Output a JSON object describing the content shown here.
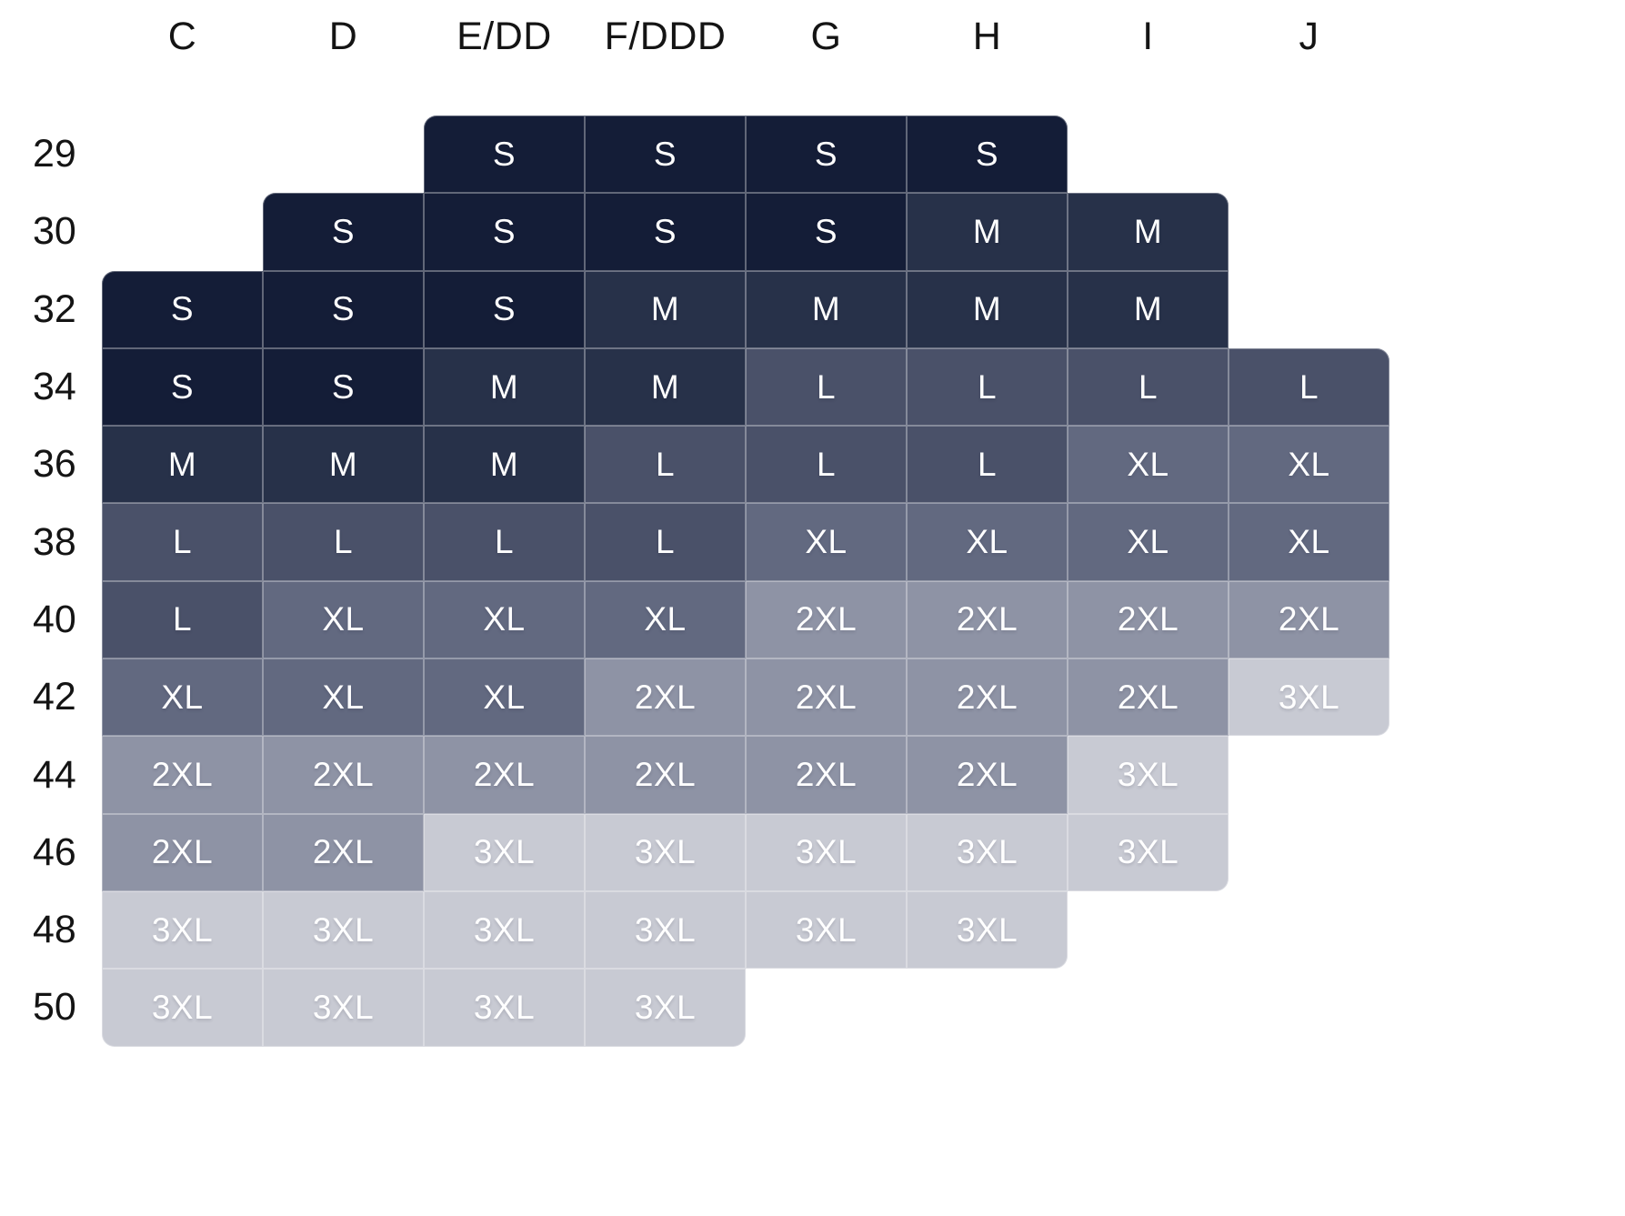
{
  "chart_data": {
    "type": "heatmap",
    "title": "",
    "xlabel": "",
    "ylabel": "",
    "legend_position": "none",
    "grid": "subtle white cell separators",
    "columns": [
      "C",
      "D",
      "E/DD",
      "F/DDD",
      "G",
      "H",
      "I",
      "J"
    ],
    "rows": [
      "29",
      "30",
      "32",
      "34",
      "36",
      "38",
      "40",
      "42",
      "44",
      "46",
      "48",
      "50"
    ],
    "cells": [
      [
        null,
        null,
        "S",
        "S",
        "S",
        "S",
        null,
        null
      ],
      [
        null,
        "S",
        "S",
        "S",
        "S",
        "M",
        "M",
        null
      ],
      [
        "S",
        "S",
        "S",
        "M",
        "M",
        "M",
        "M",
        null
      ],
      [
        "S",
        "S",
        "M",
        "M",
        "L",
        "L",
        "L",
        "L"
      ],
      [
        "M",
        "M",
        "M",
        "L",
        "L",
        "L",
        "XL",
        "XL"
      ],
      [
        "L",
        "L",
        "L",
        "L",
        "XL",
        "XL",
        "XL",
        "XL"
      ],
      [
        "L",
        "XL",
        "XL",
        "XL",
        "2XL",
        "2XL",
        "2XL",
        "2XL"
      ],
      [
        "XL",
        "XL",
        "XL",
        "2XL",
        "2XL",
        "2XL",
        "2XL",
        "3XL"
      ],
      [
        "2XL",
        "2XL",
        "2XL",
        "2XL",
        "2XL",
        "2XL",
        "3XL",
        null
      ],
      [
        "2XL",
        "2XL",
        "3XL",
        "3XL",
        "3XL",
        "3XL",
        "3XL",
        null
      ],
      [
        "3XL",
        "3XL",
        "3XL",
        "3XL",
        "3XL",
        "3XL",
        null,
        null
      ],
      [
        "3XL",
        "3XL",
        "3XL",
        "3XL",
        null,
        null,
        null,
        null
      ]
    ],
    "size_values": [
      "S",
      "M",
      "L",
      "XL",
      "2XL",
      "3XL"
    ],
    "size_colors": {
      "S": "#141d37",
      "M": "#273149",
      "L": "#4a5169",
      "XL": "#626980",
      "2XL": "#8e93a5",
      "3XL": "#c8cad3"
    },
    "cell_text_color": "#ffffff",
    "axis_label_color": "#141414",
    "background_color": "#ffffff"
  }
}
